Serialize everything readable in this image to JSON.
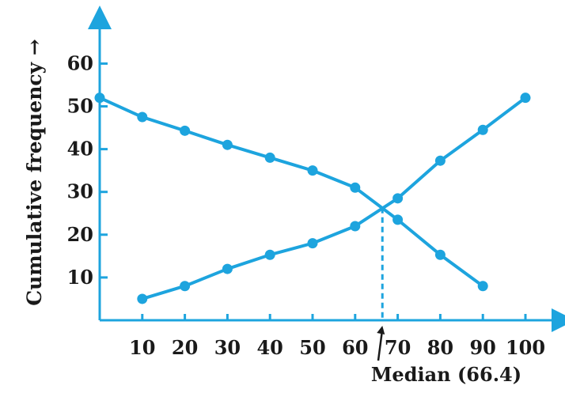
{
  "chart_data": {
    "type": "line",
    "title": "",
    "xlabel": "",
    "ylabel": "Cumulative frequency →",
    "xlim": [
      0,
      100
    ],
    "ylim": [
      0,
      60
    ],
    "x_ticks": [
      "10",
      "20",
      "30",
      "40",
      "50",
      "60",
      "70",
      "80",
      "90",
      "100"
    ],
    "y_ticks": [
      "10",
      "20",
      "30",
      "40",
      "50",
      "60"
    ],
    "grid": false,
    "colors": {
      "series": "#1da4de",
      "text": "#1a1a1a"
    },
    "series": [
      {
        "x": [
          0,
          10,
          20,
          30,
          40,
          50,
          60,
          70,
          80,
          90
        ],
        "values": [
          52,
          47.5,
          44.3,
          41,
          38,
          35,
          31,
          23.5,
          15.3,
          8
        ]
      },
      {
        "x": [
          10,
          20,
          30,
          40,
          50,
          60,
          70,
          80,
          90,
          100
        ],
        "values": [
          5,
          8,
          12,
          15.3,
          18,
          22,
          28.5,
          37.3,
          44.5,
          52
        ]
      }
    ],
    "annotations": [
      {
        "x": 66.4,
        "y": 26.3,
        "text": "Median (66.4)",
        "style": "dashed-drop-line-with-arrow"
      }
    ]
  }
}
